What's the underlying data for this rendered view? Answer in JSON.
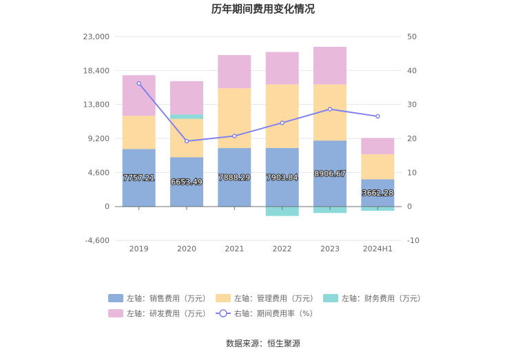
{
  "chart_data": {
    "type": "bar",
    "title": "历年期间费用变化情况",
    "categories": [
      "2019",
      "2020",
      "2021",
      "2022",
      "2023",
      "2024H1"
    ],
    "left_axis": {
      "min": -4600,
      "max": 23000,
      "ticks": [
        23000,
        18400,
        13800,
        9200,
        4600,
        0,
        -4600
      ],
      "tick_labels": [
        "23,000",
        "18,400",
        "13,800",
        "9,200",
        "4,600",
        "0",
        "-4,600"
      ]
    },
    "right_axis": {
      "min": -10,
      "max": 50,
      "ticks": [
        50,
        40,
        30,
        20,
        10,
        0,
        -10
      ],
      "tick_labels": [
        "50",
        "40",
        "30",
        "20",
        "10",
        "0",
        "-10"
      ]
    },
    "series": [
      {
        "name": "左轴：销售费用（万元）",
        "axis": "left",
        "type": "bar",
        "color": "#8eaedb",
        "values": [
          7757.21,
          6653.49,
          7888.29,
          7903.84,
          8906.67,
          3662.28
        ],
        "labels": [
          "7757.21",
          "6653.49",
          "7888.29",
          "7903.84",
          "8906.67",
          "3662.28"
        ]
      },
      {
        "name": "左轴：管理费用（万元）",
        "axis": "left",
        "type": "bar",
        "color": "#fddaa0",
        "values": [
          4500,
          5200,
          8100,
          8600,
          7600,
          3400
        ]
      },
      {
        "name": "左轴：财务费用（万元）",
        "axis": "left",
        "type": "bar",
        "color": "#8dd8d8",
        "values": [
          -100,
          600,
          -100,
          -1300,
          -900,
          -600
        ]
      },
      {
        "name": "左轴：研发费用（万元）",
        "axis": "left",
        "type": "bar",
        "color": "#e8b9da",
        "values": [
          5500,
          4500,
          4500,
          4400,
          5100,
          2200
        ]
      },
      {
        "name": "右轴：期间费用率（%）",
        "axis": "right",
        "type": "line",
        "color": "#8080f0",
        "values": [
          36.2,
          19.2,
          20.7,
          24.6,
          28.6,
          26.5
        ]
      }
    ],
    "legend_position": "bottom",
    "grid": true
  },
  "source": "数据来源：恒生聚源"
}
